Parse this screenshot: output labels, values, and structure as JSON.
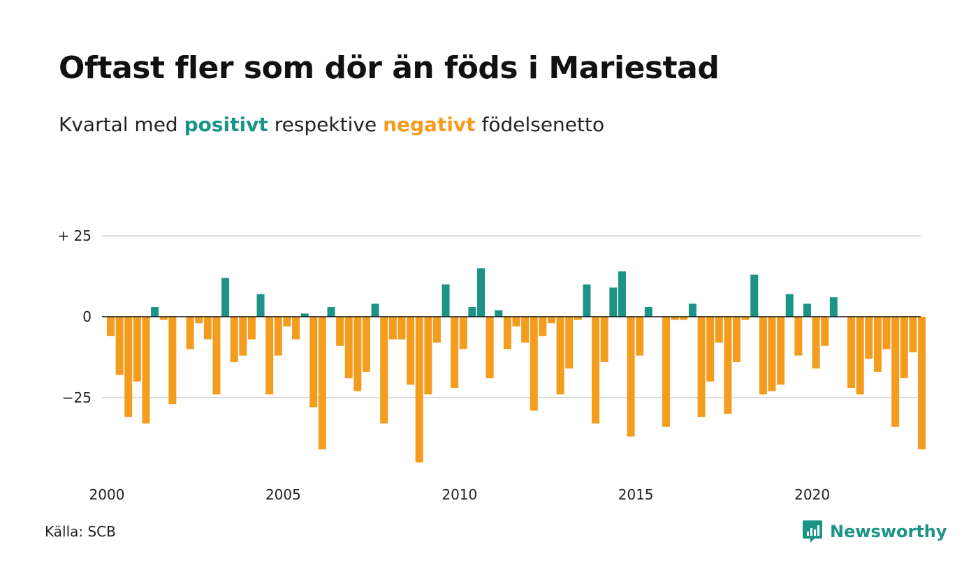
{
  "title": "Oftast fler som dör än föds i Mariestad",
  "subtitle": {
    "prefix": "Kvartal med",
    "positive_word": "positivt",
    "middle": "respektive",
    "negative_word": "negativt",
    "suffix": "födelsenetto"
  },
  "source": "Källa: SCB",
  "brand": {
    "name": "Newsworthy",
    "icon": "newsworthy-logo-icon"
  },
  "colors": {
    "positive": "#1b9486",
    "negative": "#f39c1e",
    "grid": "#dddddd",
    "zero_line": "#111111"
  },
  "chart_data": {
    "type": "bar",
    "x_unit": "quarter",
    "x_start": "2000 Q1",
    "ylim": [
      -45,
      25
    ],
    "y_ticks": [
      {
        "value": 25,
        "label": "+ 25"
      },
      {
        "value": 0,
        "label": "0"
      },
      {
        "value": -25,
        "label": "−25"
      }
    ],
    "x_ticks": [
      {
        "year": 2000,
        "label": "2000"
      },
      {
        "year": 2005,
        "label": "2005"
      },
      {
        "year": 2010,
        "label": "2010"
      },
      {
        "year": 2015,
        "label": "2015"
      },
      {
        "year": 2020,
        "label": "2020"
      }
    ],
    "grid": true,
    "values": [
      -6,
      -18,
      -31,
      -20,
      -33,
      3,
      -1,
      -27,
      0,
      -10,
      -2,
      -7,
      -24,
      12,
      -14,
      -12,
      -7,
      7,
      -24,
      -12,
      -3,
      -7,
      1,
      -28,
      -41,
      3,
      -9,
      -19,
      -23,
      -17,
      4,
      -33,
      -7,
      -7,
      -21,
      -45,
      -24,
      -8,
      10,
      -22,
      -10,
      3,
      15,
      -19,
      2,
      -10,
      -3,
      -8,
      -29,
      -6,
      -2,
      -24,
      -16,
      -1,
      10,
      -33,
      -14,
      9,
      14,
      -37,
      -12,
      3,
      0,
      -34,
      -1,
      -1,
      4,
      -31,
      -20,
      -8,
      -30,
      -14,
      -1,
      13,
      -24,
      -23,
      -21,
      7,
      -12,
      4,
      -16,
      -9,
      6,
      0,
      -22,
      -24,
      -13,
      -17,
      -10,
      -34,
      -19,
      -11,
      -41
    ]
  }
}
